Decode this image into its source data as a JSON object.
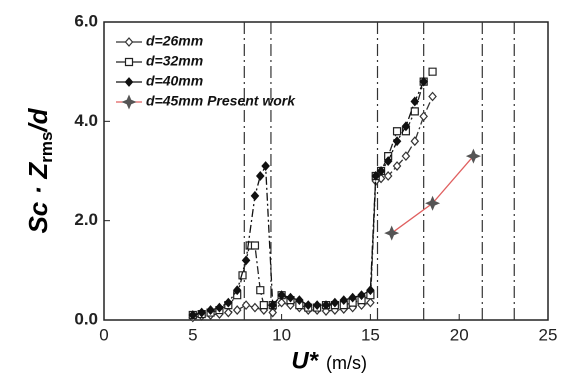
{
  "chart_data": {
    "type": "line",
    "ylabel": {
      "main": "Sc · Z",
      "sub": "rms",
      "tail": "/d"
    },
    "xlabel": {
      "main": "U*",
      "unit": "(m/s)"
    },
    "xlim": [
      0,
      25
    ],
    "xticks": [
      0,
      5,
      10,
      15,
      20,
      25
    ],
    "ylim": [
      0,
      6
    ],
    "yticks": [
      {
        "value": 0,
        "label": "0.0"
      },
      {
        "value": 2,
        "label": "2.0"
      },
      {
        "value": 4,
        "label": "4.0"
      },
      {
        "value": 6,
        "label": "6.0"
      }
    ],
    "reference_lines": [
      7.9,
      9.4,
      15.4,
      18.0,
      21.3,
      23.1
    ],
    "legend": "upper left",
    "series": [
      {
        "name": "d=26mm",
        "color": "#333333",
        "marker": "diamond-open",
        "x": [
          5,
          5.5,
          6,
          6.5,
          7,
          7.5,
          8,
          8.5,
          9,
          9.5,
          10,
          10.5,
          11,
          11.5,
          12,
          12.5,
          13,
          13.5,
          14,
          14.5,
          15,
          15.3,
          15.6,
          16,
          16.5,
          17,
          17.5,
          18,
          18.5
        ],
        "values": [
          0.05,
          0.08,
          0.1,
          0.12,
          0.15,
          0.2,
          0.3,
          0.25,
          0.2,
          0.15,
          0.35,
          0.3,
          0.25,
          0.2,
          0.2,
          0.18,
          0.2,
          0.22,
          0.25,
          0.3,
          0.35,
          2.8,
          2.85,
          2.9,
          3.1,
          3.3,
          3.6,
          4.1,
          4.5
        ]
      },
      {
        "name": "d=32mm",
        "color": "#222222",
        "marker": "square-open",
        "x": [
          5,
          5.5,
          6,
          6.5,
          7,
          7.5,
          7.8,
          8.2,
          8.5,
          8.8,
          9,
          9.5,
          10,
          10.5,
          11,
          11.5,
          12,
          12.5,
          13,
          13.5,
          14,
          14.5,
          15,
          15.3,
          15.6,
          16,
          16.5,
          17,
          17.5,
          18,
          18.5
        ],
        "values": [
          0.1,
          0.12,
          0.15,
          0.2,
          0.3,
          0.5,
          0.9,
          1.5,
          1.5,
          0.6,
          0.3,
          0.3,
          0.5,
          0.4,
          0.3,
          0.25,
          0.25,
          0.3,
          0.3,
          0.3,
          0.35,
          0.4,
          0.5,
          2.9,
          3.0,
          3.3,
          3.8,
          3.8,
          4.2,
          4.8,
          5.0
        ]
      },
      {
        "name": "d=40mm",
        "color": "#111111",
        "marker": "diamond-filled",
        "x": [
          5,
          5.5,
          6,
          6.5,
          7,
          7.5,
          8,
          8.5,
          8.8,
          9.1,
          9.5,
          10,
          10.5,
          11,
          11.5,
          12,
          12.5,
          13,
          13.5,
          14,
          14.5,
          15,
          15.3,
          15.6,
          16,
          16.5,
          17,
          17.5,
          18
        ],
        "values": [
          0.1,
          0.15,
          0.2,
          0.25,
          0.35,
          0.6,
          1.2,
          2.5,
          2.9,
          3.1,
          0.3,
          0.5,
          0.45,
          0.4,
          0.3,
          0.3,
          0.3,
          0.35,
          0.4,
          0.45,
          0.5,
          0.6,
          2.9,
          3.0,
          3.2,
          3.6,
          3.9,
          4.4,
          4.8
        ]
      },
      {
        "name": "d=45mm Present work",
        "color": "#e06060",
        "marker": "star",
        "x": [
          16.2,
          18.5,
          20.8
        ],
        "values": [
          1.75,
          2.35,
          3.3
        ]
      }
    ]
  }
}
